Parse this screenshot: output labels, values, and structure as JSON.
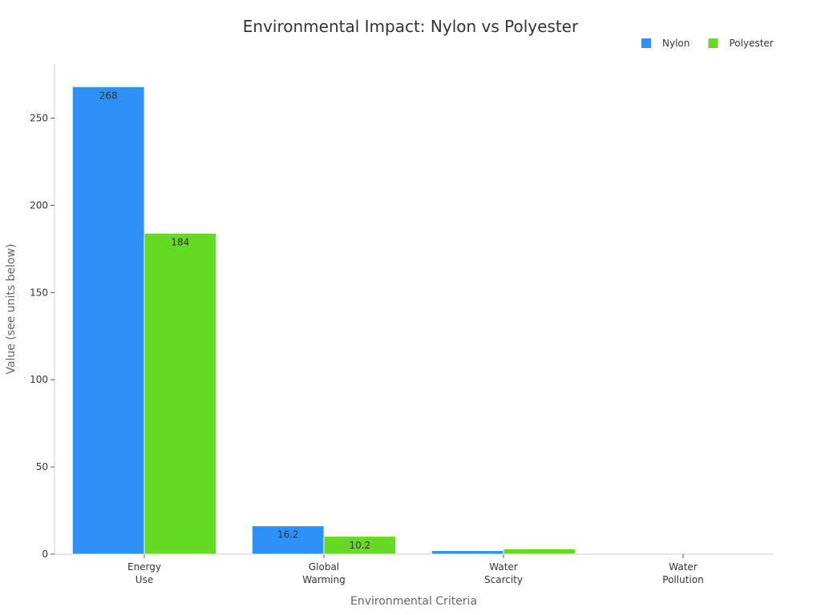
{
  "chart_data": {
    "type": "bar",
    "title": "Environmental Impact: Nylon vs Polyester",
    "xlabel": "Environmental Criteria",
    "ylabel": "Value (see units below)",
    "categories": [
      [
        "Energy",
        "Use"
      ],
      [
        "Global",
        "Warming"
      ],
      [
        "Water",
        "Scarcity"
      ],
      [
        "Water",
        "Pollution"
      ]
    ],
    "series": [
      {
        "name": "Nylon",
        "color": "#2E91F8",
        "values": [
          268,
          16.2,
          2,
          0
        ],
        "labels": [
          "268",
          "16.2",
          "",
          ""
        ]
      },
      {
        "name": "Polyester",
        "color": "#65DA24",
        "values": [
          184,
          10.2,
          3,
          0
        ],
        "labels": [
          "184",
          "10.2",
          "",
          ""
        ]
      }
    ],
    "ylim": [
      0,
      281
    ],
    "yticks": [
      0,
      50,
      100,
      150,
      200,
      250
    ],
    "grid": false,
    "legend_position": "top-right"
  }
}
